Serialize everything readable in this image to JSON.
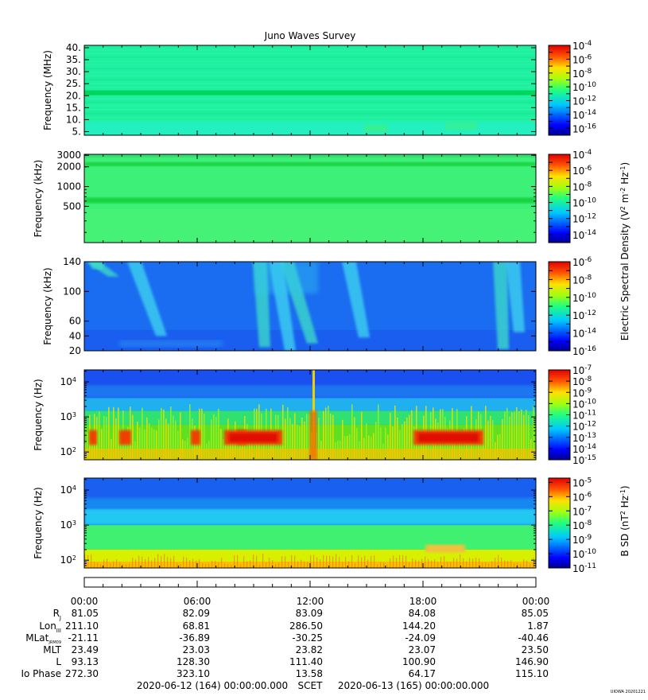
{
  "title": "Juno Waves Survey",
  "watermark": "UIOWA 20201221",
  "panels": [
    {
      "id": "p1",
      "ylabel": "Frequency (MHz)",
      "yscale": "linear",
      "ylim": [
        3.5,
        41
      ],
      "ticks": [
        {
          "v": 5,
          "label": "5."
        },
        {
          "v": 10,
          "label": "10."
        },
        {
          "v": 15,
          "label": "15."
        },
        {
          "v": 20,
          "label": "20."
        },
        {
          "v": 25,
          "label": "25."
        },
        {
          "v": 30,
          "label": "30."
        },
        {
          "v": 35,
          "label": "35."
        },
        {
          "v": 40,
          "label": "40."
        }
      ],
      "bands": [
        {
          "from": 20.2,
          "to": 22.2,
          "color": "#00d65c"
        }
      ],
      "base_color": "#1ef0a0",
      "colorbar": {
        "exps": [
          "-4",
          "-6",
          "-8",
          "-10",
          "-12",
          "-14",
          "-16"
        ],
        "min_exp": -17,
        "max_exp": -4
      }
    },
    {
      "id": "p2",
      "ylabel": "Frequency (kHz)",
      "yscale": "log",
      "ylim": [
        140,
        3100
      ],
      "ticks": [
        {
          "v": 500,
          "label": "500"
        },
        {
          "v": 1000,
          "label": "1000"
        },
        {
          "v": 2000,
          "label": "2000"
        },
        {
          "v": 3000,
          "label": "3000"
        }
      ],
      "bands": [
        {
          "from": 2050,
          "to": 2350,
          "color": "#12d23e"
        },
        {
          "from": 560,
          "to": 680,
          "color": "#12d23e"
        }
      ],
      "base_color": "#3cf078",
      "colorbar": {
        "exps": [
          "-4",
          "-6",
          "-8",
          "-10",
          "-12",
          "-14"
        ],
        "min_exp": -15,
        "max_exp": -4
      }
    },
    {
      "id": "p3",
      "ylabel": "Frequency (kHz)",
      "yscale": "linear",
      "ylim": [
        20,
        140
      ],
      "ticks": [
        {
          "v": 20,
          "label": "20"
        },
        {
          "v": 40,
          "label": "40"
        },
        {
          "v": 60,
          "label": "60"
        },
        {
          "v": 100,
          "label": "100"
        },
        {
          "v": 140,
          "label": "140"
        }
      ],
      "base_color": "#1a6cf0",
      "colorbar": {
        "exps": [
          "-6",
          "-8",
          "-10",
          "-12",
          "-14",
          "-16"
        ],
        "min_exp": -16,
        "max_exp": -6
      }
    },
    {
      "id": "p4",
      "ylabel": "Frequency (Hz)",
      "yscale": "log",
      "ylim": [
        60,
        22000
      ],
      "ticks": [
        {
          "v": 100,
          "label": "10",
          "exp": "2"
        },
        {
          "v": 1000,
          "label": "10",
          "exp": "3"
        },
        {
          "v": 10000,
          "label": "10",
          "exp": "4"
        }
      ],
      "base_color": "#1a50f0",
      "colorbar": {
        "exps": [
          "-7",
          "-8",
          "-9",
          "-10",
          "-11",
          "-12",
          "-13",
          "-14",
          "-15"
        ],
        "min_exp": -15,
        "max_exp": -7
      }
    },
    {
      "id": "p5",
      "ylabel": "Frequency (Hz)",
      "yscale": "log",
      "ylim": [
        60,
        22000
      ],
      "ticks": [
        {
          "v": 100,
          "label": "10",
          "exp": "2"
        },
        {
          "v": 1000,
          "label": "10",
          "exp": "3"
        },
        {
          "v": 10000,
          "label": "10",
          "exp": "4"
        }
      ],
      "base_color": "#1a60f0",
      "colorbar": {
        "exps": [
          "-5",
          "-6",
          "-7",
          "-8",
          "-9",
          "-10",
          "-11"
        ],
        "min_exp": -11,
        "max_exp": -4.7
      }
    }
  ],
  "colorbar_label_e": "Electric Spectral Density (V",
  "colorbar_label_b": "B SD (nT",
  "time_axis": {
    "ticks": [
      "00:00",
      "06:00",
      "12:00",
      "18:00",
      "00:00"
    ],
    "hours": [
      0,
      6,
      12,
      18,
      24
    ]
  },
  "ephemeris": [
    {
      "label": "R",
      "sub": "J",
      "values": [
        "81.05",
        "82.09",
        "83.09",
        "84.08",
        "85.05"
      ]
    },
    {
      "label": "Lon",
      "sub": "III",
      "values": [
        "211.10",
        "68.81",
        "286.50",
        "144.20",
        "1.87"
      ]
    },
    {
      "label": "MLat",
      "sub": "JRM09",
      "values": [
        "-21.11",
        "-36.89",
        "-30.25",
        "-24.09",
        "-40.46"
      ]
    },
    {
      "label": "MLT",
      "sub": "",
      "values": [
        "23.49",
        "23.03",
        "23.82",
        "23.07",
        "23.50"
      ]
    },
    {
      "label": "L",
      "sub": "",
      "values": [
        "93.13",
        "128.30",
        "111.40",
        "100.90",
        "146.90"
      ]
    },
    {
      "label": "Io Phase",
      "sub": "",
      "values": [
        "272.30",
        "323.10",
        "13.58",
        "64.17",
        "115.10"
      ]
    }
  ],
  "footer": {
    "start": "2020-06-12 (164) 00:00:00.000",
    "scet": "SCET",
    "end": "2020-06-13 (165) 00:00:00.000"
  },
  "colors": {
    "jet": [
      "#00007f",
      "#0000ff",
      "#007fff",
      "#00ffff",
      "#7fff7f",
      "#ffff00",
      "#ff7f00",
      "#ff0000",
      "#7f0000"
    ]
  }
}
